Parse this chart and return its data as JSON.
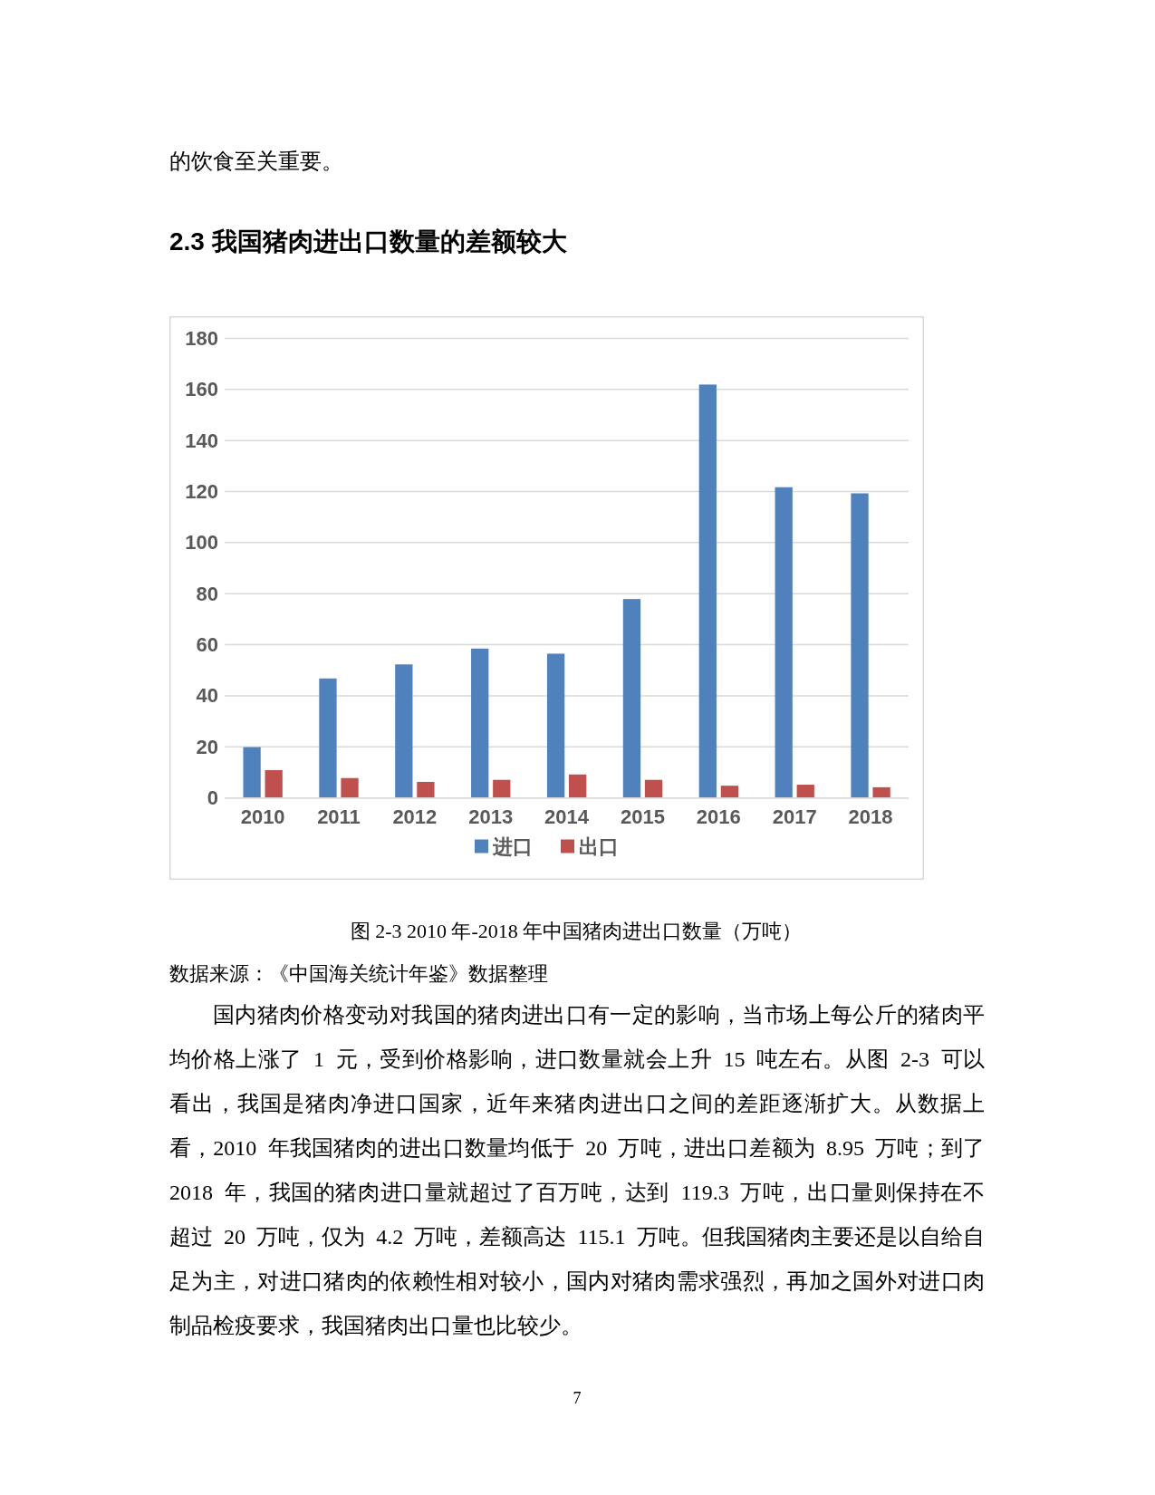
{
  "chart_data": {
    "type": "bar",
    "title": "2.3 我国猪肉进出口数量的差额较大",
    "categories": [
      "2010",
      "2011",
      "2012",
      "2013",
      "2014",
      "2015",
      "2016",
      "2017",
      "2018"
    ],
    "series": [
      {
        "name": "进口",
        "color": "#4f81bd",
        "values": [
          19.9,
          46.8,
          52.3,
          58.5,
          56.5,
          77.9,
          161.9,
          121.7,
          119.3
        ]
      },
      {
        "name": "出口",
        "color": "#c0504d",
        "values": [
          10.9,
          7.8,
          6.3,
          7.1,
          9.2,
          7.1,
          4.8,
          5.2,
          4.2
        ]
      }
    ],
    "ylim": [
      0,
      180
    ],
    "yticks": [
      0,
      20,
      40,
      60,
      80,
      100,
      120,
      140,
      160,
      180
    ],
    "grid": "y",
    "legend": "bottom",
    "annotations": [
      "的饮食至关重要。",
      "图 2-3 2010 年-2018 年中国猪肉进出口数量（万吨）",
      "数据来源：《中国海关统计年鉴》数据整理",
      "国内猪肉价格变动对我国的猪肉进出口有一定的影响，当市场上每公斤的猪肉平均价格上涨了 1 元，受到价格影响，进口数量就会上升 15 吨左右。从图 2-3 可以看出，我国是猪肉净进口国家，近年来猪肉进出口之间的差距逐渐扩大。从数据上看，2010 年我国猪肉的进出口数量均低于 20 万吨，进出口差额为 8.95 万吨；到了 2018 年，我国的猪肉进口量就超过了百万吨，达到 119.3 万吨，出口量则保持在不超过 20 万吨，仅为 4.2 万吨，差额高达 115.1 万吨。但我国猪肉主要还是以自给自足为主，对进口猪肉的依赖性相对较小，国内对猪肉需求强烈，再加之国外对进口肉制品检疫要求，我国猪肉出口量也比较少。",
      "7"
    ]
  }
}
